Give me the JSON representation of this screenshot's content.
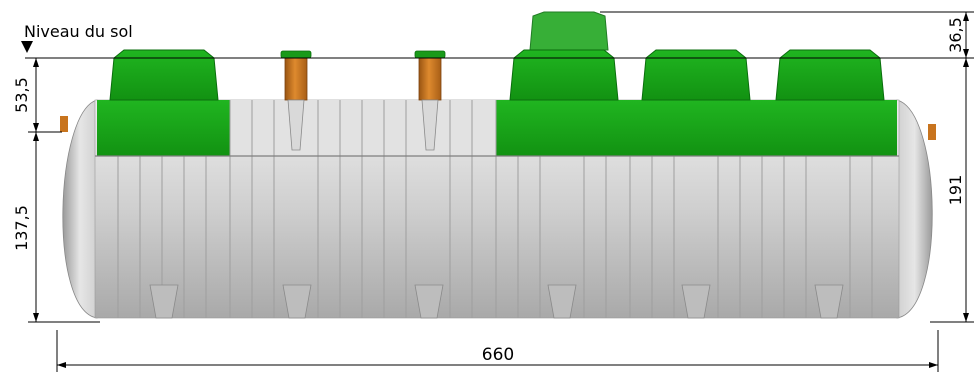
{
  "labels": {
    "ground_level": "Niveau du sol",
    "dim_left_upper": "53,5",
    "dim_left_lower": "137,5",
    "dim_right_top": "36,5",
    "dim_right_main": "191",
    "dim_bottom_length": "660"
  },
  "colors": {
    "tank_green": "#17a117",
    "tank_green_dark": "#0f7d12",
    "tank_grey": "#c8c8c8",
    "pipe_orange": "#c8741e",
    "dimension_line": "#000000"
  }
}
